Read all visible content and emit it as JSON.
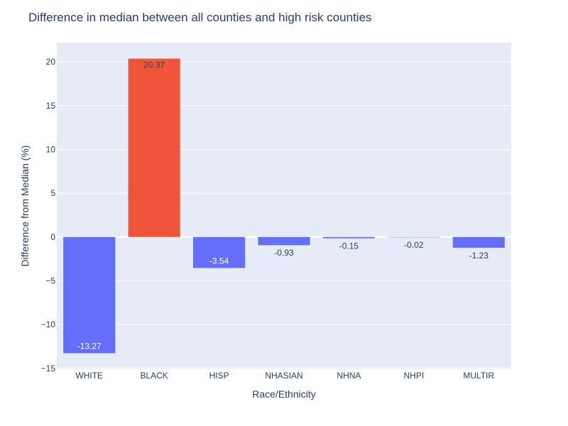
{
  "chart_data": {
    "type": "bar",
    "title": "Difference in median between all counties and high risk counties",
    "xlabel": "Race/Ethnicity",
    "ylabel": "Difference from Median (%)",
    "categories": [
      "WHITE",
      "BLACK",
      "HISP",
      "NHASIAN",
      "NHNA",
      "NHPI",
      "MULTIR"
    ],
    "values": [
      -13.27,
      20.37,
      -3.54,
      -0.93,
      -0.15,
      -0.02,
      -1.23
    ],
    "value_labels": [
      "-13.27",
      "20.37",
      "-3.54",
      "-0.93",
      "-0.15",
      "-0.02",
      "-1.23"
    ],
    "ylim": [
      -15.1,
      22.2
    ],
    "yticks": [
      20,
      15,
      10,
      5,
      0,
      -5,
      -10,
      -15
    ],
    "ytick_labels": [
      "20",
      "15",
      "10",
      "5",
      "0",
      "−5",
      "−10",
      "−15"
    ],
    "grid": true,
    "colors": {
      "negative": "#636efa",
      "positive": "#ef553b",
      "plot_background": "#e5ecf6",
      "gridline": "#ffffff",
      "text": "#2a3f5f"
    }
  }
}
